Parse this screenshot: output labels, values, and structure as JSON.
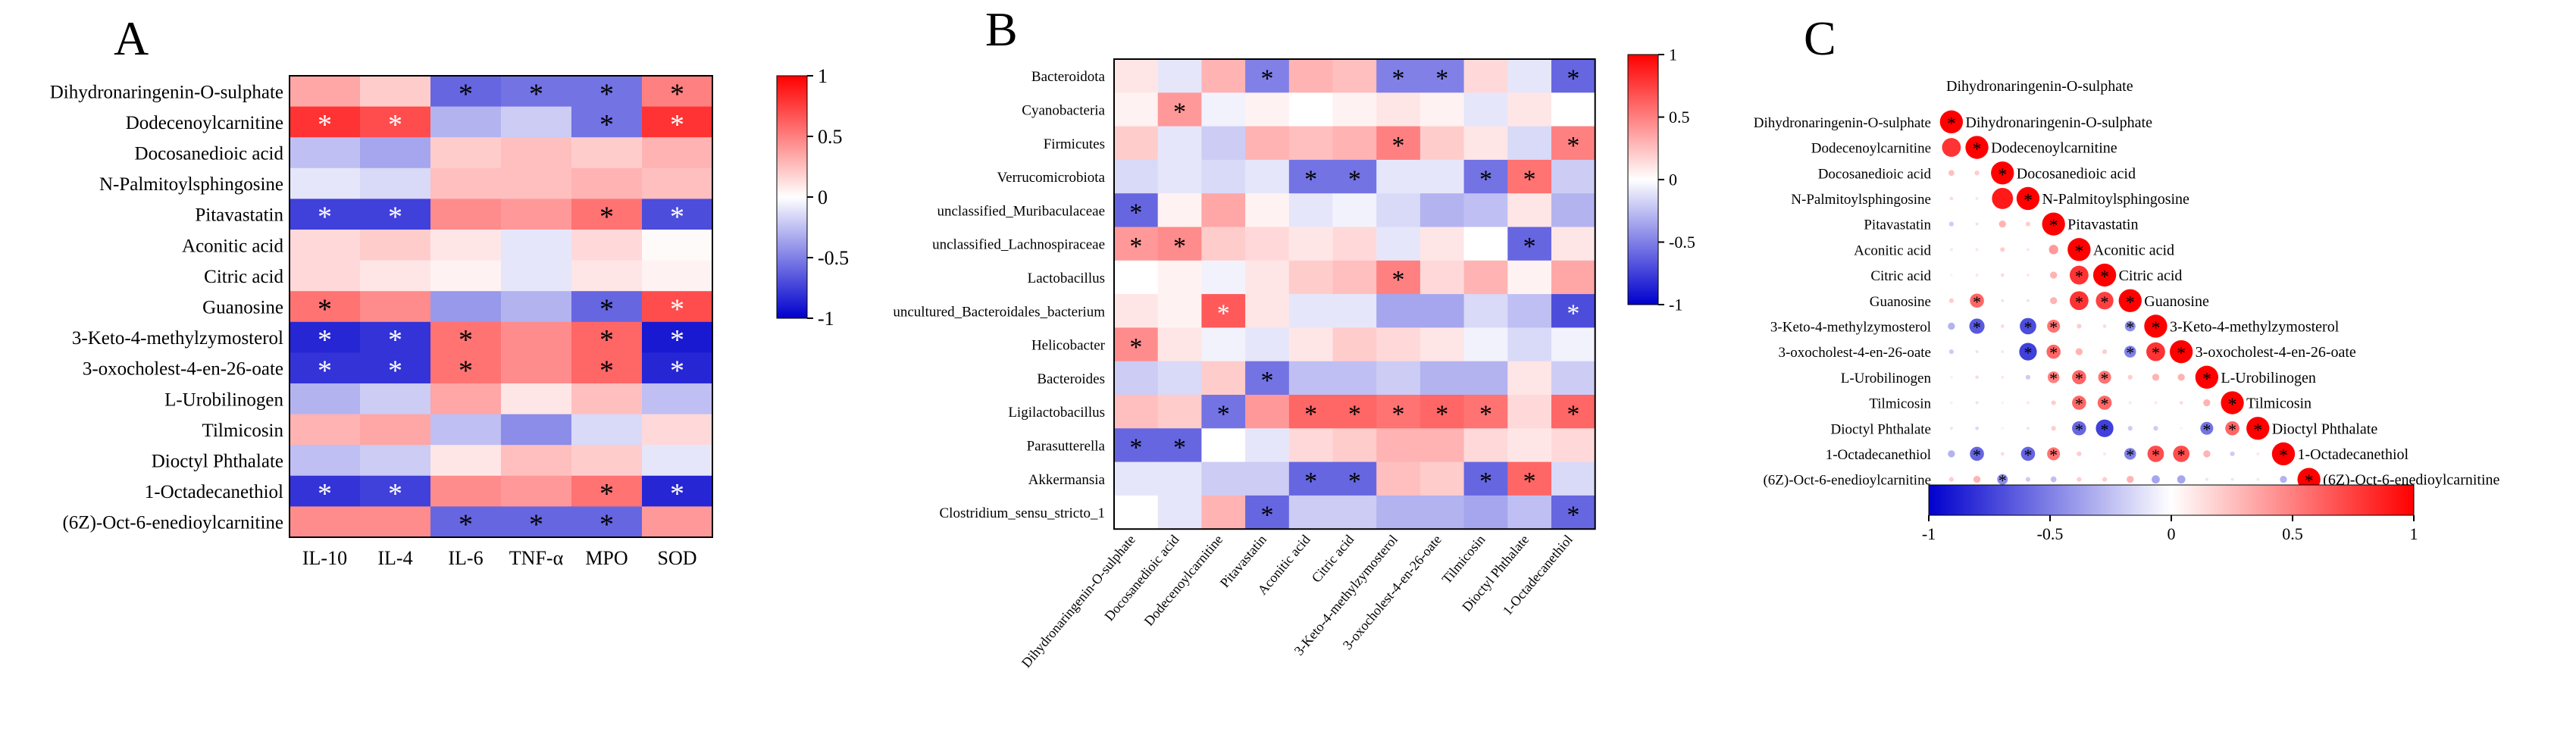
{
  "chart_data": [
    {
      "panel": "A",
      "type": "heatmap",
      "rows": [
        "Dihydronaringenin-O-sulphate",
        "Dodecenoylcarnitine",
        "Docosanedioic acid",
        "N-Palmitoylsphingosine",
        "Pitavastatin",
        "Aconitic acid",
        "Citric acid",
        "Guanosine",
        "3-Keto-4-methylzymosterol",
        "3-oxocholest-4-en-26-oate",
        "L-Urobilinogen",
        "Tilmicosin",
        "Dioctyl Phthalate",
        "1-Octadecanethiol",
        "(6Z)-Oct-6-enedioylcarnitine"
      ],
      "columns": [
        "IL-10",
        "IL-4",
        "IL-6",
        "TNF-α",
        "MPO",
        "SOD"
      ],
      "values": [
        [
          0.35,
          0.2,
          -0.6,
          -0.55,
          -0.55,
          0.5
        ],
        [
          0.8,
          0.7,
          -0.3,
          -0.2,
          -0.55,
          0.8
        ],
        [
          -0.25,
          -0.35,
          0.2,
          0.25,
          0.2,
          0.3
        ],
        [
          -0.1,
          -0.15,
          0.25,
          0.25,
          0.3,
          0.25
        ],
        [
          -0.75,
          -0.75,
          0.45,
          0.4,
          0.55,
          -0.7
        ],
        [
          0.15,
          0.2,
          0.1,
          -0.1,
          0.15,
          0.02
        ],
        [
          0.15,
          0.1,
          0.05,
          -0.1,
          0.1,
          0.05
        ],
        [
          0.55,
          0.45,
          -0.4,
          -0.3,
          -0.6,
          0.7
        ],
        [
          -0.85,
          -0.8,
          0.55,
          0.45,
          0.6,
          -0.9
        ],
        [
          -0.8,
          -0.8,
          0.55,
          0.45,
          0.6,
          -0.85
        ],
        [
          -0.3,
          -0.2,
          0.35,
          0.1,
          0.25,
          -0.25
        ],
        [
          0.3,
          0.35,
          -0.25,
          -0.45,
          -0.15,
          0.15
        ],
        [
          -0.25,
          -0.2,
          0.1,
          0.25,
          0.2,
          -0.1
        ],
        [
          -0.8,
          -0.75,
          0.45,
          0.4,
          0.55,
          -0.85
        ],
        [
          0.45,
          0.45,
          -0.6,
          -0.6,
          -0.6,
          0.4
        ]
      ],
      "significant": [
        [
          0,
          0,
          1,
          1,
          1,
          1
        ],
        [
          1,
          1,
          0,
          0,
          1,
          1
        ],
        [
          0,
          0,
          0,
          0,
          0,
          0
        ],
        [
          0,
          0,
          0,
          0,
          0,
          0
        ],
        [
          1,
          1,
          0,
          0,
          1,
          1
        ],
        [
          0,
          0,
          0,
          0,
          0,
          0
        ],
        [
          0,
          0,
          0,
          0,
          0,
          0
        ],
        [
          1,
          0,
          0,
          0,
          1,
          1
        ],
        [
          1,
          1,
          1,
          0,
          1,
          1
        ],
        [
          1,
          1,
          1,
          0,
          1,
          1
        ],
        [
          0,
          0,
          0,
          0,
          0,
          0
        ],
        [
          0,
          0,
          0,
          0,
          0,
          0
        ],
        [
          0,
          0,
          0,
          0,
          0,
          0
        ],
        [
          1,
          1,
          0,
          0,
          1,
          1
        ],
        [
          0,
          0,
          1,
          1,
          1,
          0
        ]
      ],
      "colorbar_ticks": [
        "1",
        "0.5",
        "0",
        "-0.5",
        "-1"
      ],
      "marker": "*",
      "crange": [
        -1,
        1
      ]
    },
    {
      "panel": "B",
      "type": "heatmap",
      "rows": [
        "Bacteroidota",
        "Cyanobacteria",
        "Firmicutes",
        "Verrucomicrobiota",
        "unclassified_Muribaculaceae",
        "unclassified_Lachnospiraceae",
        "Lactobacillus",
        "uncultured_Bacteroidales_bacterium",
        "Helicobacter",
        "Bacteroides",
        "Ligilactobacillus",
        "Parasutterella",
        "Akkermansia",
        "Clostridium_sensu_stricto_1"
      ],
      "columns": [
        "Dihydronaringenin-O-sulphate",
        "Docosanedioic acid",
        "Dodecenoylcarnitine",
        "Pitavastatin",
        "Aconitic acid",
        "Citric acid",
        "3-Keto-4-methylzymosterol",
        "3-oxocholest-4-en-26-oate",
        "Tilmicosin",
        "Dioctyl Phthalate",
        "1-Octadecanethiol"
      ],
      "values": [
        [
          0.1,
          -0.1,
          0.3,
          -0.5,
          0.3,
          0.25,
          -0.5,
          -0.5,
          0.15,
          -0.1,
          -0.6
        ],
        [
          0.05,
          0.4,
          -0.05,
          0.05,
          0.0,
          0.05,
          0.1,
          0.05,
          -0.1,
          0.1,
          0.0
        ],
        [
          0.2,
          -0.1,
          -0.2,
          0.3,
          0.25,
          0.3,
          0.5,
          0.2,
          0.1,
          -0.15,
          0.5
        ],
        [
          -0.15,
          -0.1,
          -0.15,
          -0.1,
          -0.55,
          -0.55,
          -0.1,
          -0.1,
          -0.55,
          0.55,
          -0.2
        ],
        [
          -0.6,
          0.05,
          0.35,
          0.05,
          -0.1,
          -0.05,
          -0.15,
          -0.3,
          -0.25,
          0.1,
          -0.3
        ],
        [
          0.4,
          0.45,
          0.2,
          0.15,
          0.1,
          0.15,
          -0.1,
          0.1,
          0.0,
          -0.6,
          0.1
        ],
        [
          0.0,
          0.05,
          -0.05,
          0.1,
          0.2,
          0.25,
          0.5,
          0.15,
          0.3,
          0.05,
          0.35
        ],
        [
          0.1,
          0.05,
          0.65,
          0.1,
          -0.1,
          -0.1,
          -0.35,
          -0.35,
          -0.15,
          -0.25,
          -0.7
        ],
        [
          0.45,
          0.1,
          -0.05,
          -0.1,
          0.1,
          0.2,
          0.15,
          0.1,
          -0.05,
          -0.15,
          -0.05
        ],
        [
          -0.2,
          -0.15,
          0.2,
          -0.55,
          -0.25,
          -0.25,
          -0.2,
          -0.3,
          -0.3,
          0.1,
          -0.2
        ],
        [
          0.25,
          0.2,
          -0.55,
          0.4,
          0.6,
          0.6,
          0.55,
          0.6,
          0.55,
          0.15,
          0.6
        ],
        [
          -0.6,
          -0.6,
          0.0,
          -0.1,
          0.15,
          0.2,
          0.3,
          0.3,
          0.15,
          0.1,
          0.15
        ],
        [
          -0.1,
          -0.1,
          -0.2,
          -0.2,
          -0.6,
          -0.6,
          0.25,
          0.2,
          -0.6,
          0.6,
          -0.15
        ],
        [
          0.0,
          -0.1,
          0.3,
          -0.6,
          -0.2,
          -0.2,
          -0.3,
          -0.3,
          -0.35,
          -0.25,
          -0.6
        ]
      ],
      "significant": [
        [
          0,
          0,
          0,
          1,
          0,
          0,
          1,
          1,
          0,
          0,
          1
        ],
        [
          0,
          1,
          0,
          0,
          0,
          0,
          0,
          0,
          0,
          0,
          0
        ],
        [
          0,
          0,
          0,
          0,
          0,
          0,
          1,
          0,
          0,
          0,
          1
        ],
        [
          0,
          0,
          0,
          0,
          1,
          1,
          0,
          0,
          1,
          1,
          0
        ],
        [
          1,
          0,
          0,
          0,
          0,
          0,
          0,
          0,
          0,
          0,
          0
        ],
        [
          1,
          1,
          0,
          0,
          0,
          0,
          0,
          0,
          0,
          1,
          0
        ],
        [
          0,
          0,
          0,
          0,
          0,
          0,
          1,
          0,
          0,
          0,
          0
        ],
        [
          0,
          0,
          1,
          0,
          0,
          0,
          0,
          0,
          0,
          0,
          1
        ],
        [
          1,
          0,
          0,
          0,
          0,
          0,
          0,
          0,
          0,
          0,
          0
        ],
        [
          0,
          0,
          0,
          1,
          0,
          0,
          0,
          0,
          0,
          0,
          0
        ],
        [
          0,
          0,
          1,
          0,
          1,
          1,
          1,
          1,
          1,
          0,
          1
        ],
        [
          1,
          1,
          0,
          0,
          0,
          0,
          0,
          0,
          0,
          0,
          0
        ],
        [
          0,
          0,
          0,
          0,
          1,
          1,
          0,
          0,
          1,
          1,
          0
        ],
        [
          0,
          0,
          0,
          1,
          0,
          0,
          0,
          0,
          0,
          0,
          1
        ]
      ],
      "colorbar_ticks": [
        "1",
        "0.5",
        "0",
        "-0.5",
        "-1"
      ],
      "marker": "*",
      "crange": [
        -1,
        1
      ]
    },
    {
      "panel": "C",
      "type": "heatmap",
      "subtype": "correlation-matrix-lower-triangle",
      "variables": [
        "Dihydronaringenin-O-sulphate",
        "Dodecenoylcarnitine",
        "Docosanedioic acid",
        "N-Palmitoylsphingosine",
        "Pitavastatin",
        "Aconitic acid",
        "Citric acid",
        "Guanosine",
        "3-Keto-4-methylzymosterol",
        "3-oxocholest-4-en-26-oate",
        "L-Urobilinogen",
        "Tilmicosin",
        "Dioctyl Phthalate",
        "1-Octadecanethiol",
        "(6Z)-Oct-6-enedioylcarnitine"
      ],
      "lower_values": [
        [],
        [
          0.8
        ],
        [
          0.25,
          0.2
        ],
        [
          0.15,
          0.1,
          0.9
        ],
        [
          -0.2,
          -0.1,
          0.3,
          0.2
        ],
        [
          0.1,
          0.1,
          0.2,
          0.1,
          0.4
        ],
        [
          0.05,
          0.1,
          0.15,
          0.1,
          0.3,
          0.8
        ],
        [
          0.2,
          0.6,
          -0.1,
          -0.1,
          0.3,
          0.8,
          0.75
        ],
        [
          -0.3,
          -0.65,
          0.15,
          -0.7,
          0.55,
          0.2,
          0.15,
          -0.45
        ],
        [
          -0.2,
          -0.1,
          0.1,
          -0.75,
          0.6,
          0.3,
          0.2,
          -0.5,
          0.8
        ],
        [
          -0.05,
          0.15,
          0.1,
          -0.2,
          0.5,
          0.6,
          0.55,
          0.2,
          0.3,
          0.3
        ],
        [
          -0.05,
          -0.1,
          0.05,
          0.1,
          0.2,
          0.6,
          0.6,
          0.1,
          0.1,
          0.15,
          0.3
        ],
        [
          -0.1,
          -0.15,
          0.05,
          -0.1,
          0.2,
          -0.6,
          -0.75,
          -0.2,
          -0.2,
          0.05,
          -0.55,
          0.6
        ],
        [
          -0.3,
          -0.6,
          0.15,
          -0.6,
          0.55,
          0.2,
          0.1,
          -0.5,
          0.7,
          0.7,
          0.3,
          -0.2,
          0.1
        ],
        [
          0.2,
          0.3,
          -0.45,
          -0.2,
          -0.25,
          0.2,
          0.2,
          0.3,
          -0.35,
          -0.35,
          -0.1,
          -0.1,
          0.1,
          -0.3
        ]
      ],
      "lower_significant": [
        [],
        [
          0
        ],
        [
          0,
          0
        ],
        [
          0,
          0,
          0
        ],
        [
          0,
          0,
          0,
          0
        ],
        [
          0,
          0,
          0,
          0,
          0
        ],
        [
          0,
          0,
          0,
          0,
          0,
          1
        ],
        [
          0,
          1,
          0,
          0,
          0,
          1,
          1
        ],
        [
          0,
          1,
          0,
          1,
          1,
          0,
          0,
          1
        ],
        [
          0,
          0,
          0,
          1,
          1,
          0,
          0,
          1,
          1
        ],
        [
          0,
          0,
          0,
          0,
          1,
          1,
          1,
          0,
          0,
          0
        ],
        [
          0,
          0,
          0,
          0,
          0,
          1,
          1,
          0,
          0,
          0,
          0
        ],
        [
          0,
          0,
          0,
          0,
          0,
          1,
          1,
          0,
          0,
          0,
          1,
          1
        ],
        [
          0,
          1,
          0,
          1,
          1,
          0,
          0,
          1,
          1,
          1,
          0,
          0,
          0
        ],
        [
          0,
          0,
          1,
          0,
          0,
          0,
          0,
          0,
          0,
          0,
          0,
          0,
          0,
          0
        ]
      ],
      "colorbar_ticks": [
        "-1",
        "-0.5",
        "0",
        "0.5",
        "1"
      ],
      "marker": "*",
      "crange": [
        -1,
        1
      ]
    }
  ],
  "labels": {
    "panel_a": "A",
    "panel_b": "B",
    "panel_c": "C"
  },
  "colors": {
    "positive": "#ff0000",
    "negative": "#0000cd",
    "neutral": "#ffffff"
  }
}
